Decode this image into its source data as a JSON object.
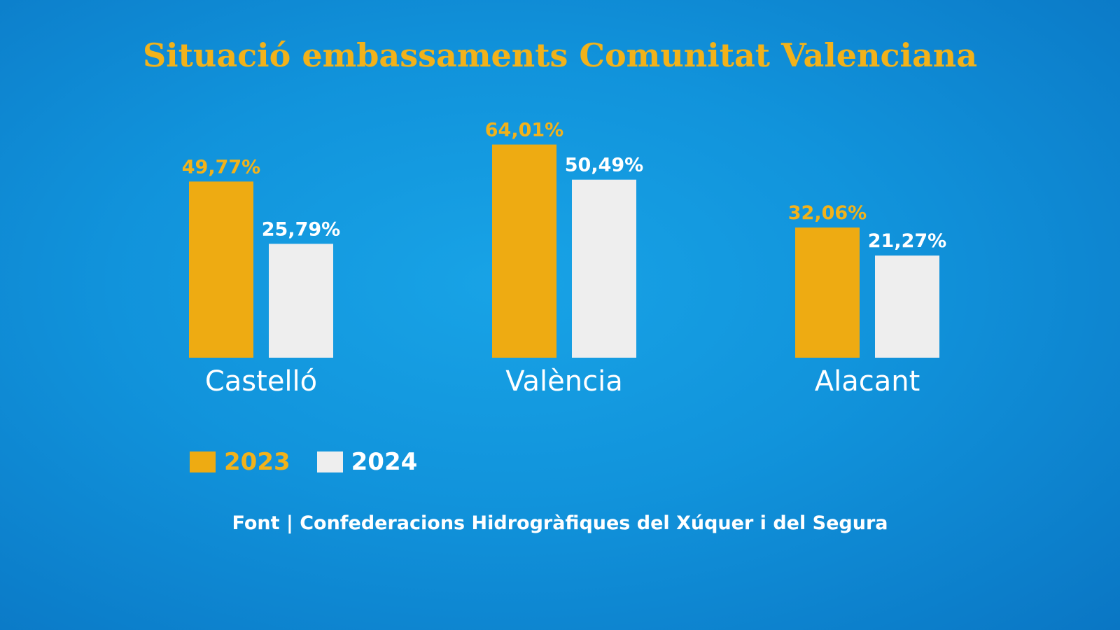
{
  "chart_data": {
    "type": "bar",
    "title": "Situació embassaments Comunitat Valenciana",
    "categories": [
      "Castelló",
      "València",
      "Alacant"
    ],
    "series": [
      {
        "name": "2023",
        "values": [
          49.77,
          64.01,
          32.06
        ],
        "labels": [
          "49,77%",
          "64,01%",
          "32,06%"
        ],
        "color": "#eeab12"
      },
      {
        "name": "2024",
        "values": [
          25.79,
          50.49,
          21.27
        ],
        "labels": [
          "25,79%",
          "50,49%",
          "21,27%"
        ],
        "color": "#eeeeee"
      }
    ],
    "unit": "%",
    "legend": "bottom-left",
    "grid": false,
    "source": "Font | Confederacions Hidrogràfiques del Xúquer i del Segura"
  }
}
